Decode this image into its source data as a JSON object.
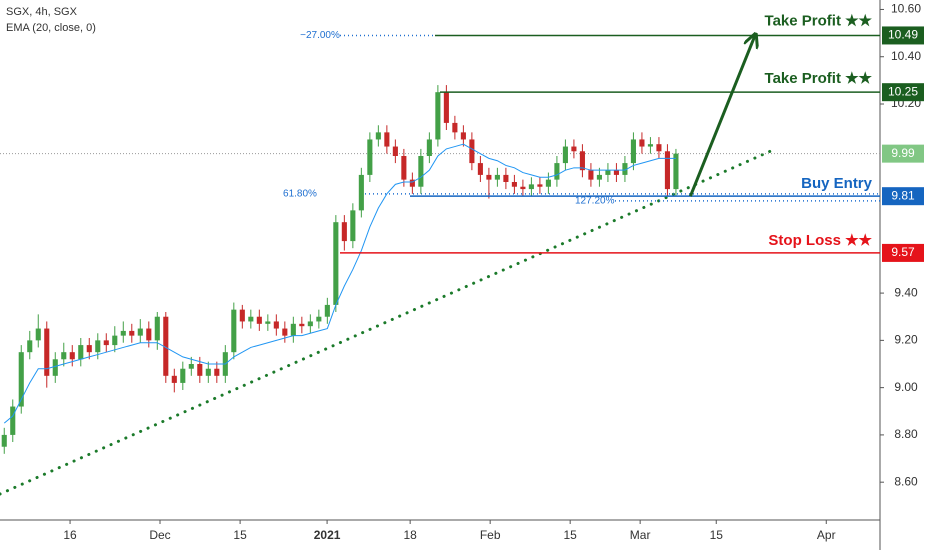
{
  "chart_data": {
    "type": "candlestick",
    "title": "SGX, 4h, SGX",
    "subtitle": "EMA (20, close, 0)",
    "up_color": "#43a047",
    "down_color": "#c62828",
    "ylim": [
      8.44,
      10.64
    ],
    "xlim": [
      0,
      103.5
    ],
    "yticks": [
      {
        "value": 10.6,
        "label": "10.60"
      },
      {
        "value": 10.4,
        "label": "10.40"
      },
      {
        "value": 10.2,
        "label": "10.20"
      },
      {
        "value": 9.4,
        "label": "9.40"
      },
      {
        "value": 9.2,
        "label": "9.20"
      },
      {
        "value": 9.0,
        "label": "9.00"
      },
      {
        "value": 8.8,
        "label": "8.80"
      },
      {
        "value": 8.6,
        "label": "8.60"
      }
    ],
    "xticks": [
      {
        "value": 8.24,
        "label": "16"
      },
      {
        "value": 18.82,
        "label": "Dec"
      },
      {
        "value": 28.24,
        "label": "15"
      },
      {
        "value": 38.47,
        "label": "2021"
      },
      {
        "value": 48.24,
        "label": "18"
      },
      {
        "value": 57.65,
        "label": "Feb"
      },
      {
        "value": 67.06,
        "label": "15"
      },
      {
        "value": 75.29,
        "label": "Mar"
      },
      {
        "value": 84.24,
        "label": "15"
      },
      {
        "value": 97.18,
        "label": "Apr"
      }
    ],
    "ohlc": [
      [
        8.75,
        8.83,
        8.72,
        8.8
      ],
      [
        8.8,
        8.95,
        8.77,
        8.92
      ],
      [
        8.92,
        9.18,
        8.89,
        9.15
      ],
      [
        9.15,
        9.24,
        9.12,
        9.2
      ],
      [
        9.2,
        9.31,
        9.17,
        9.25
      ],
      [
        9.25,
        9.28,
        9.0,
        9.05
      ],
      [
        9.05,
        9.15,
        9.02,
        9.12
      ],
      [
        9.12,
        9.19,
        9.09,
        9.15
      ],
      [
        9.15,
        9.18,
        9.09,
        9.12
      ],
      [
        9.12,
        9.21,
        9.09,
        9.18
      ],
      [
        9.18,
        9.21,
        9.12,
        9.15
      ],
      [
        9.15,
        9.23,
        9.12,
        9.2
      ],
      [
        9.2,
        9.23,
        9.15,
        9.18
      ],
      [
        9.18,
        9.26,
        9.15,
        9.22
      ],
      [
        9.22,
        9.28,
        9.19,
        9.24
      ],
      [
        9.24,
        9.27,
        9.19,
        9.22
      ],
      [
        9.22,
        9.29,
        9.19,
        9.25
      ],
      [
        9.25,
        9.28,
        9.17,
        9.2
      ],
      [
        9.2,
        9.32,
        9.16,
        9.3
      ],
      [
        9.3,
        9.32,
        9.02,
        9.05
      ],
      [
        9.05,
        9.08,
        8.98,
        9.02
      ],
      [
        9.02,
        9.11,
        8.99,
        9.08
      ],
      [
        9.08,
        9.13,
        9.05,
        9.1
      ],
      [
        9.1,
        9.13,
        9.02,
        9.05
      ],
      [
        9.05,
        9.11,
        9.02,
        9.08
      ],
      [
        9.08,
        9.11,
        9.02,
        9.05
      ],
      [
        9.05,
        9.18,
        9.02,
        9.15
      ],
      [
        9.15,
        9.36,
        9.12,
        9.33
      ],
      [
        9.33,
        9.35,
        9.25,
        9.28
      ],
      [
        9.28,
        9.33,
        9.25,
        9.3
      ],
      [
        9.3,
        9.33,
        9.24,
        9.27
      ],
      [
        9.27,
        9.31,
        9.24,
        9.28
      ],
      [
        9.28,
        9.31,
        9.22,
        9.25
      ],
      [
        9.25,
        9.28,
        9.19,
        9.22
      ],
      [
        9.22,
        9.3,
        9.19,
        9.27
      ],
      [
        9.27,
        9.3,
        9.23,
        9.26
      ],
      [
        9.26,
        9.31,
        9.23,
        9.28
      ],
      [
        9.28,
        9.33,
        9.25,
        9.3
      ],
      [
        9.3,
        9.38,
        9.27,
        9.35
      ],
      [
        9.35,
        9.73,
        9.32,
        9.7
      ],
      [
        9.7,
        9.73,
        9.58,
        9.62
      ],
      [
        9.62,
        9.78,
        9.59,
        9.75
      ],
      [
        9.75,
        9.93,
        9.72,
        9.9
      ],
      [
        9.9,
        10.08,
        9.87,
        10.05
      ],
      [
        10.05,
        10.11,
        10.02,
        10.08
      ],
      [
        10.08,
        10.11,
        9.99,
        10.02
      ],
      [
        10.02,
        10.05,
        9.95,
        9.98
      ],
      [
        9.98,
        10.01,
        9.85,
        9.88
      ],
      [
        9.88,
        9.91,
        9.82,
        9.85
      ],
      [
        9.85,
        10.01,
        9.82,
        9.98
      ],
      [
        9.98,
        10.08,
        9.95,
        10.05
      ],
      [
        10.05,
        10.28,
        10.02,
        10.25
      ],
      [
        10.25,
        10.28,
        10.09,
        10.12
      ],
      [
        10.12,
        10.15,
        10.05,
        10.08
      ],
      [
        10.08,
        10.11,
        10.02,
        10.05
      ],
      [
        10.05,
        10.08,
        9.92,
        9.95
      ],
      [
        9.95,
        9.98,
        9.87,
        9.9
      ],
      [
        9.9,
        9.93,
        9.8,
        9.88
      ],
      [
        9.88,
        9.93,
        9.85,
        9.9
      ],
      [
        9.9,
        9.93,
        9.84,
        9.87
      ],
      [
        9.87,
        9.9,
        9.82,
        9.85
      ],
      [
        9.85,
        9.88,
        9.81,
        9.84
      ],
      [
        9.84,
        9.89,
        9.81,
        9.86
      ],
      [
        9.86,
        9.89,
        9.82,
        9.85
      ],
      [
        9.85,
        9.91,
        9.82,
        9.88
      ],
      [
        9.88,
        9.98,
        9.85,
        9.95
      ],
      [
        9.95,
        10.05,
        9.92,
        10.02
      ],
      [
        10.02,
        10.05,
        9.97,
        10.0
      ],
      [
        10.0,
        10.03,
        9.89,
        9.92
      ],
      [
        9.92,
        9.95,
        9.85,
        9.88
      ],
      [
        9.88,
        9.93,
        9.85,
        9.9
      ],
      [
        9.9,
        9.95,
        9.87,
        9.92
      ],
      [
        9.92,
        9.95,
        9.87,
        9.9
      ],
      [
        9.9,
        9.98,
        9.87,
        9.95
      ],
      [
        9.95,
        10.08,
        9.92,
        10.05
      ],
      [
        10.05,
        10.08,
        9.99,
        10.02
      ],
      [
        10.02,
        10.06,
        9.99,
        10.03
      ],
      [
        10.03,
        10.06,
        9.97,
        10.0
      ],
      [
        10.0,
        10.03,
        9.81,
        9.84
      ],
      [
        9.84,
        10.01,
        9.81,
        9.99
      ]
    ],
    "ema": {
      "color": "#2196f3",
      "values": [
        8.85,
        8.88,
        8.95,
        9.02,
        9.08,
        9.08,
        9.09,
        9.1,
        9.11,
        9.12,
        9.13,
        9.14,
        9.15,
        9.16,
        9.17,
        9.18,
        9.19,
        9.19,
        9.19,
        9.17,
        9.15,
        9.13,
        9.12,
        9.11,
        9.1,
        9.1,
        9.1,
        9.13,
        9.15,
        9.17,
        9.18,
        9.19,
        9.2,
        9.21,
        9.22,
        9.22,
        9.23,
        9.24,
        9.25,
        9.35,
        9.43,
        9.5,
        9.58,
        9.68,
        9.76,
        9.82,
        9.86,
        9.87,
        9.87,
        9.89,
        9.92,
        9.98,
        10.01,
        10.02,
        10.03,
        10.01,
        9.99,
        9.97,
        9.96,
        9.94,
        9.93,
        9.91,
        9.9,
        9.89,
        9.89,
        9.9,
        9.92,
        9.93,
        9.93,
        9.92,
        9.92,
        9.92,
        9.92,
        9.92,
        9.94,
        9.95,
        9.96,
        9.97,
        9.97,
        9.97
      ]
    },
    "levels": [
      {
        "label": "Take Profit ★★",
        "value": 10.49,
        "color": "#1b5e20"
      },
      {
        "label": "Take Profit ★★",
        "value": 10.25,
        "color": "#1b5e20"
      },
      {
        "label": "Buy Entry",
        "value": 9.81,
        "color": "#1565c0"
      },
      {
        "label": "Stop Loss ★★",
        "value": 9.57,
        "color": "#e5131a"
      }
    ],
    "fib": [
      {
        "label": "−27.00%",
        "value": 10.49
      },
      {
        "label": "61.80%",
        "value": 9.82
      },
      {
        "label": "127.20%",
        "value": 9.79
      }
    ],
    "fib_color": "#1e6fd0",
    "last_price": 9.99,
    "last_price_color": "#81c784",
    "trendline": {
      "x": [
        0,
        91.2
      ],
      "values": [
        8.55,
        10.01
      ],
      "color": "#1b7a2a"
    },
    "arrow": {
      "x": [
        81.2,
        88.8
      ],
      "values": [
        9.81,
        10.49
      ],
      "color": "#1b5e20"
    }
  }
}
